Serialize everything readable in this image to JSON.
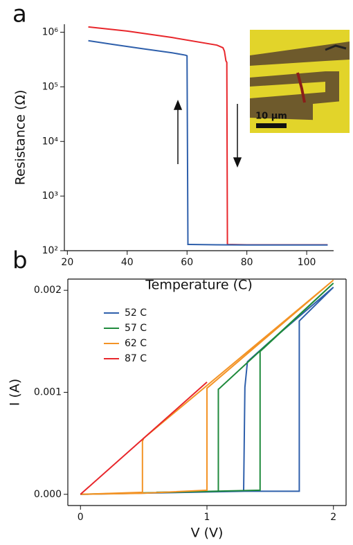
{
  "chart_data": [
    {
      "type": "line",
      "panel_label": "a",
      "xlabel": "Temperature (C)",
      "ylabel": "Resistance (Ω)",
      "xlim": [
        19,
        109
      ],
      "xticks": [
        20,
        40,
        60,
        80,
        100
      ],
      "ylim": [
        100,
        1400000
      ],
      "log_scale": true,
      "yticks": [
        {
          "value": 100,
          "label": "10²"
        },
        {
          "value": 1000,
          "label": "10³"
        },
        {
          "value": 10000,
          "label": "10⁴"
        },
        {
          "value": 100000,
          "label": "10⁵"
        },
        {
          "value": 1000000,
          "label": "10⁶"
        }
      ],
      "annotations": [
        "10 µm"
      ],
      "series": [
        {
          "color": "#e8262b",
          "x": [
            27,
            40,
            55,
            70,
            72,
            72.5,
            73,
            73.3,
            73.5,
            80,
            90,
            100,
            107
          ],
          "values": [
            1250000,
            1050000,
            800000,
            580000,
            520000,
            450000,
            300000,
            280000,
            130,
            128,
            128,
            128,
            128
          ]
        },
        {
          "color": "#2e5fab",
          "x": [
            27,
            35,
            45,
            55,
            59.5,
            60,
            60.3,
            61,
            70,
            80,
            90,
            100,
            107
          ],
          "values": [
            700000,
            600000,
            500000,
            420000,
            380000,
            370000,
            130,
            130,
            128,
            127,
            127,
            127,
            127
          ]
        }
      ]
    },
    {
      "type": "line",
      "panel_label": "b",
      "xlabel": "V (V)",
      "ylabel": "I (A)",
      "xlim": [
        -0.1,
        2.1
      ],
      "xticks": [
        0,
        1,
        2
      ],
      "ylim": [
        -0.00011,
        0.00211
      ],
      "log_scale": false,
      "yticks": [
        {
          "value": 0,
          "label": "0.000"
        },
        {
          "value": 0.001,
          "label": "0.001"
        },
        {
          "value": 0.002,
          "label": "0.002"
        }
      ],
      "legend": "upper left",
      "series": [
        {
          "name": "52 C",
          "color": "#2e5fab",
          "x": [
            0,
            1.3,
            1.73,
            1.73,
            2,
            1.5,
            1.32,
            1.3,
            1.29,
            0.8
          ],
          "values": [
            0,
            3e-05,
            3e-05,
            0.0017,
            0.00203,
            0.0015,
            0.0013,
            0.00105,
            3e-05,
            2e-05
          ]
        },
        {
          "name": "57 C",
          "color": "#1f8a3c",
          "x": [
            0,
            1.05,
            1.42,
            1.42,
            1.55,
            2,
            1.1,
            1.09,
            1.09,
            0.6
          ],
          "values": [
            0,
            3e-05,
            4e-05,
            0.0014,
            0.00155,
            0.00207,
            0.00104,
            0.00103,
            3e-05,
            2e-05
          ]
        },
        {
          "name": "62 C",
          "color": "#f39325",
          "x": [
            0,
            0.48,
            1.0,
            1.0,
            2.0,
            0.5,
            0.49,
            0.49,
            0
          ],
          "values": [
            0,
            1e-05,
            4e-05,
            0.00104,
            0.0021,
            0.00055,
            0.00052,
            2e-05,
            0
          ]
        },
        {
          "name": "87 C",
          "color": "#e8262b",
          "x": [
            0,
            1.0
          ],
          "values": [
            0,
            0.0011
          ]
        }
      ]
    }
  ]
}
